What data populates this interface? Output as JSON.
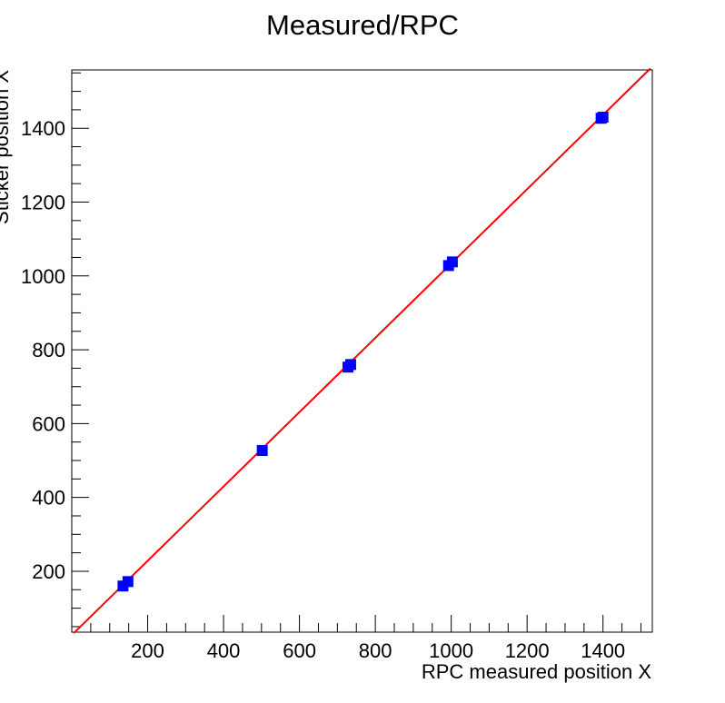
{
  "chart_data": {
    "type": "scatter",
    "title": "Measured/RPC",
    "xlabel": "RPC measured position X",
    "ylabel": "Sticker position X",
    "xlim": [
      0,
      1530
    ],
    "ylim": [
      35,
      1558
    ],
    "x_ticks": [
      200,
      400,
      600,
      800,
      1000,
      1200,
      1400
    ],
    "y_ticks": [
      200,
      400,
      600,
      800,
      1000,
      1200,
      1400
    ],
    "grid": false,
    "legend": "none",
    "series": [
      {
        "kind": "markers",
        "marker": "square",
        "color": "#0000ff",
        "x": [
          135,
          148,
          502,
          728,
          735,
          993,
          1003,
          1395,
          1400
        ],
        "y": [
          160,
          172,
          527,
          753,
          760,
          1028,
          1038,
          1427,
          1430
        ]
      },
      {
        "kind": "fit_line",
        "color": "#ff0000",
        "x": [
          5,
          1525
        ],
        "y": [
          32,
          1562
        ]
      }
    ]
  }
}
